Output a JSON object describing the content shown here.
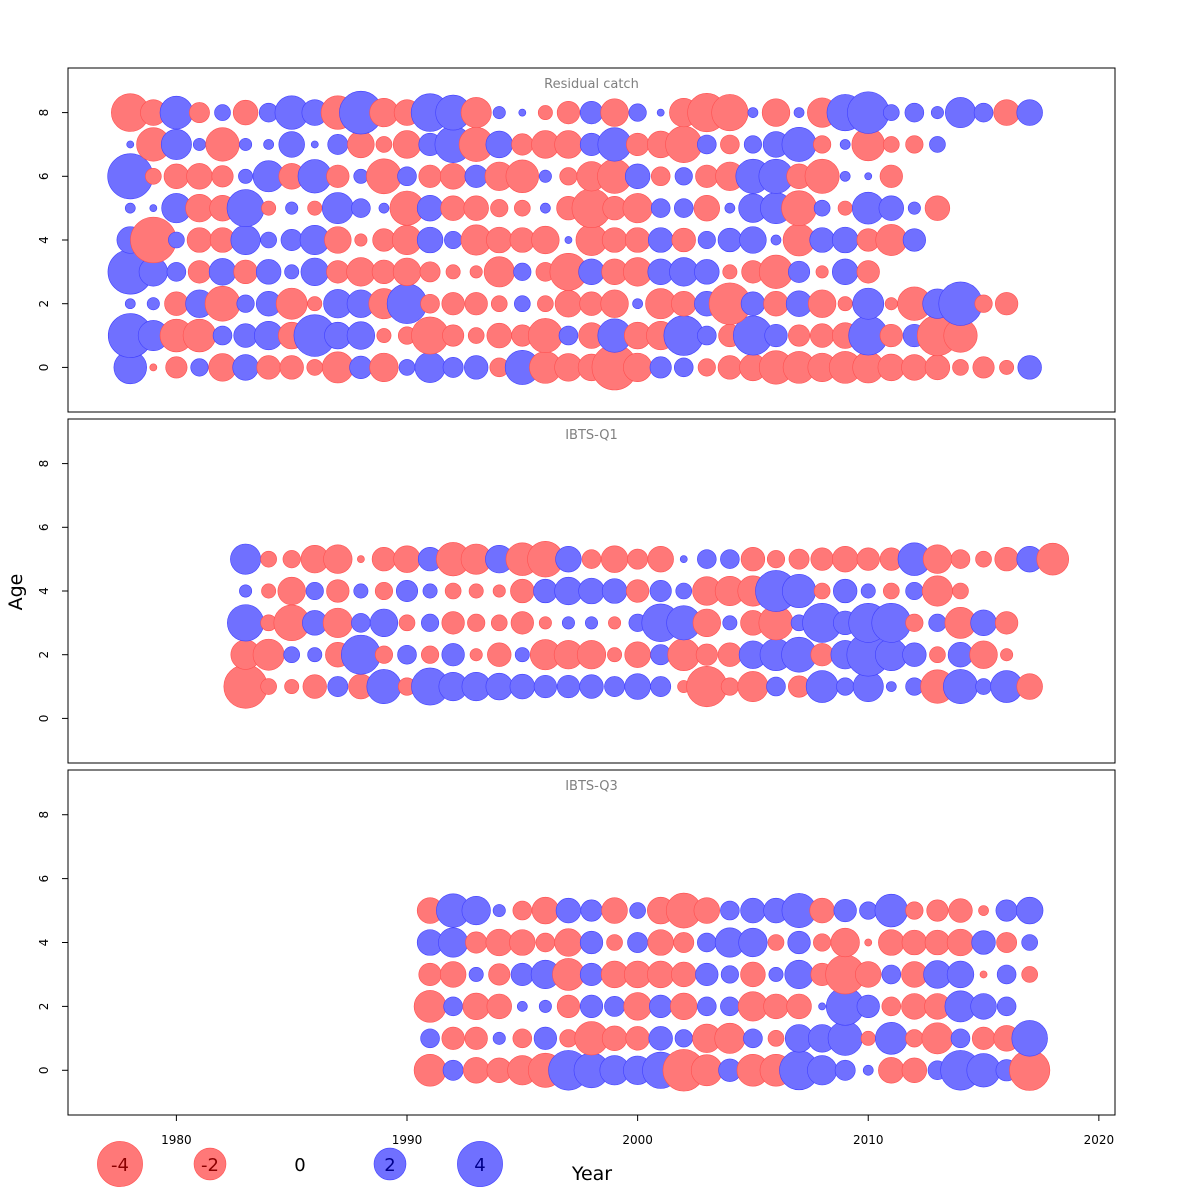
{
  "chart_data": {
    "type": "scatter",
    "subtype": "bubble-residuals",
    "xlabel": "Year",
    "ylabel": "Age",
    "xlim": [
      1975.3,
      2020.7
    ],
    "ylim": [
      -1.4,
      9.4
    ],
    "x_ticks": [
      "1980",
      "1990",
      "2000",
      "2010",
      "2020"
    ],
    "y_ticks": [
      "0",
      "2",
      "4",
      "6",
      "8"
    ],
    "colors": {
      "positive": "#7070ff",
      "negative": "#ff7878"
    },
    "panels": [
      {
        "title": "Residual catch",
        "years": [
          1978,
          2017
        ],
        "ages": [
          0,
          8
        ],
        "rows": {
          "0": [
            2.1,
            -0.1,
            -0.9,
            0.6,
            -1.5,
            1.3,
            -1.1,
            -1.1,
            -0.5,
            -1.9,
            1.0,
            -1.6,
            0.5,
            1.8,
            0.8,
            1.1,
            -0.7,
            2.3,
            -2.0,
            -1.5,
            -1.4,
            -4.0,
            -1.6,
            0.9,
            0.7,
            -0.6,
            -1.1,
            -1.4,
            -2.2,
            -2.0,
            -1.6,
            -2.0,
            -1.9,
            -1.4,
            -1.3,
            -1.2,
            -0.5,
            -0.9,
            -0.4,
            1.1
          ],
          "1": [
            3.8,
            1.8,
            -2.1,
            -2.1,
            0.7,
            1.1,
            1.6,
            -1.4,
            3.4,
            1.4,
            1.5,
            -0.4,
            -0.6,
            -2.7,
            -0.9,
            -0.5,
            -1.2,
            -0.9,
            -2.3,
            0.7,
            -1.3,
            2.2,
            -1.4,
            -1.6,
            3.1,
            0.7,
            -1.0,
            3.0,
            1.0,
            -0.9,
            -1.1,
            -1.3,
            3.0,
            -1.0,
            1.0,
            -3.2,
            -2.2
          ],
          "2": [
            0.2,
            0.3,
            -1.1,
            1.5,
            -2.4,
            0.6,
            1.2,
            -1.9,
            -0.4,
            1.6,
            1.5,
            -1.8,
            3.1,
            -0.7,
            -1.0,
            -1.0,
            -0.5,
            0.5,
            -0.5,
            -1.4,
            -1.1,
            -1.5,
            0.2,
            -1.8,
            -1.2,
            1.2,
            -3.4,
            1.1,
            -1.2,
            1.3,
            -1.5,
            -0.4,
            1.9,
            -0.3,
            -2.2,
            1.7,
            3.7,
            -0.6,
            -1.0
          ],
          "3": [
            3.9,
            1.6,
            0.7,
            -1.0,
            1.4,
            -1.1,
            1.2,
            0.4,
            1.5,
            -1.0,
            -1.6,
            -1.1,
            -1.5,
            -0.8,
            -0.4,
            -0.3,
            -1.8,
            0.6,
            -0.7,
            -2.7,
            1.3,
            -1.3,
            -1.6,
            1.3,
            1.6,
            1.2,
            -0.4,
            -1.0,
            -2.2,
            0.9,
            -0.3,
            1.3,
            -1.0
          ],
          "4": [
            1.4,
            -4.1,
            0.5,
            -1.2,
            -1.2,
            1.7,
            0.5,
            0.9,
            1.7,
            -1.4,
            -0.3,
            -1.0,
            -1.7,
            1.3,
            0.6,
            -1.8,
            -1.3,
            -1.2,
            -1.5,
            0.1,
            -1.9,
            -1.2,
            -1.2,
            1.2,
            -1.1,
            0.6,
            1.1,
            1.4,
            0.2,
            -2.0,
            1.2,
            1.3,
            -1.0,
            -1.9,
            1.0
          ],
          "5": [
            0.2,
            0.1,
            1.7,
            -1.5,
            -1.3,
            2.7,
            -0.4,
            0.3,
            -0.4,
            1.9,
            0.7,
            0.2,
            -2.3,
            1.3,
            -1.2,
            -1.2,
            -0.6,
            -0.5,
            0.2,
            -1.1,
            -3.0,
            -1.1,
            -1.7,
            0.7,
            0.7,
            -1.3,
            0.2,
            1.6,
            1.9,
            -2.4,
            0.5,
            -0.4,
            2.0,
            1.2,
            0.3,
            -1.2
          ],
          "6": [
            4.0,
            -0.5,
            -1.2,
            -1.3,
            -0.9,
            0.4,
            1.9,
            -1.3,
            2.2,
            -1.0,
            0.4,
            -2.4,
            0.7,
            -1.0,
            -1.3,
            1.0,
            -1.6,
            -2.1,
            0.3,
            -0.6,
            -1.7,
            -2.3,
            1.2,
            -0.7,
            0.6,
            -1.0,
            -1.6,
            2.3,
            2.3,
            -1.2,
            -2.3,
            0.2,
            0.1,
            -1.0
          ],
          "7": [
            0.1,
            -2.2,
            1.8,
            0.3,
            -2.2,
            0.3,
            0.2,
            1.3,
            0.1,
            0.8,
            -1.4,
            -0.5,
            -1.5,
            1.0,
            2.6,
            -2.3,
            1.4,
            -0.9,
            -1.5,
            -1.5,
            1.0,
            2.2,
            -1.0,
            -1.4,
            -2.6,
            0.7,
            -0.7,
            0.6,
            1.3,
            2.3,
            -0.6,
            0.2,
            -2.1,
            -0.5,
            -0.6,
            0.5
          ],
          "8": [
            -2.8,
            -1.3,
            2.1,
            -0.8,
            0.5,
            -1.2,
            0.7,
            2.2,
            1.3,
            -2.2,
            3.6,
            -1.6,
            -1.3,
            2.8,
            2.4,
            -1.8,
            0.3,
            0.1,
            -0.4,
            -1.0,
            1.0,
            -1.5,
            0.6,
            0.1,
            -1.6,
            -2.9,
            -2.6,
            0.2,
            -1.5,
            0.2,
            -1.7,
            2.6,
            3.4,
            0.5,
            0.7,
            0.3,
            1.8,
            0.7,
            -1.3,
            1.3
          ]
        }
      },
      {
        "title": "IBTS-Q1",
        "years": [
          1983,
          2018
        ],
        "ages": [
          1,
          5
        ],
        "rows": {
          "1": [
            -3.7,
            -0.5,
            -0.4,
            -1.1,
            0.8,
            -1.2,
            2.3,
            -0.6,
            2.7,
            1.6,
            1.6,
            1.4,
            1.2,
            1.0,
            1.0,
            1.1,
            0.8,
            1.3,
            0.8,
            -0.3,
            -3.2,
            -0.6,
            -1.8,
            0.7,
            -0.9,
            2.0,
            0.6,
            1.8,
            0.2,
            0.6,
            -2.2,
            2.3,
            0.5,
            2.0,
            -1.3
          ],
          "2": [
            -1.7,
            -1.9,
            0.5,
            0.4,
            -1.2,
            3.0,
            -0.6,
            0.7,
            -0.6,
            1.0,
            -0.3,
            -1.1,
            0.4,
            -1.8,
            -1.6,
            -1.6,
            -0.4,
            -1.3,
            0.8,
            -2.0,
            -0.9,
            -1.1,
            1.5,
            2.0,
            2.4,
            -1.0,
            1.6,
            3.6,
            2.0,
            1.1,
            -0.5,
            1.2,
            -1.5,
            -0.3
          ],
          "3": [
            2.6,
            -0.5,
            -2.5,
            1.2,
            -1.7,
            0.7,
            1.5,
            -0.5,
            0.6,
            -1.0,
            -0.6,
            -0.5,
            -1.0,
            -0.3,
            0.3,
            0.3,
            -0.3,
            0.6,
            2.8,
            2.3,
            -1.5,
            0.4,
            -1.2,
            -2.3,
            0.5,
            3.0,
            1.1,
            3.0,
            3.0,
            -0.6,
            0.6,
            -1.9,
            1.3,
            -1.0
          ],
          "4": [
            0.3,
            -0.4,
            -1.5,
            0.6,
            -1.0,
            0.4,
            -0.6,
            0.9,
            0.4,
            -0.5,
            -0.4,
            -0.3,
            -1.1,
            1.1,
            1.5,
            1.3,
            1.2,
            -1.0,
            0.9,
            0.5,
            -1.6,
            -1.7,
            -1.8,
            3.3,
            2.2,
            -0.5,
            1.1,
            0.4,
            -0.5,
            0.6,
            -1.8,
            -0.5
          ],
          "5": [
            1.8,
            -0.5,
            -0.6,
            -1.5,
            -1.6,
            -0.1,
            -1.1,
            -1.4,
            1.1,
            -2.2,
            -1.8,
            1.5,
            -2.1,
            -2.5,
            1.3,
            -0.7,
            -1.4,
            -0.8,
            -1.3,
            0.1,
            0.7,
            0.7,
            -1.1,
            -0.6,
            -0.8,
            -1.0,
            -1.3,
            -1.0,
            -1.0,
            2.1,
            -1.6,
            -0.7,
            -0.5,
            -1.1,
            1.3,
            -2.0
          ]
        }
      },
      {
        "title": "IBTS-Q3",
        "years": [
          1991,
          2017
        ],
        "ages": [
          0,
          5
        ],
        "rows": {
          "0": [
            -2.0,
            0.8,
            -1.3,
            -1.2,
            -1.7,
            -2.3,
            3.1,
            2.4,
            1.7,
            1.6,
            2.6,
            -3.4,
            -1.9,
            1.0,
            -2.0,
            -2.0,
            3.0,
            1.7,
            0.8,
            0.2,
            -1.3,
            -1.2,
            0.7,
            3.1,
            2.2,
            0.9,
            -3.2
          ],
          "1": [
            0.7,
            -1.0,
            -1.0,
            0.3,
            -0.7,
            1.0,
            -0.6,
            -2.2,
            -1.2,
            -1.1,
            1.1,
            0.6,
            -1.6,
            -1.8,
            0.7,
            -0.5,
            1.5,
            1.5,
            2.3,
            -0.4,
            2.0,
            -0.6,
            -1.9,
            0.7,
            -1.0,
            -1.3,
            2.5
          ],
          "2": [
            -2.0,
            0.7,
            -1.4,
            -1.2,
            0.2,
            0.3,
            -1.0,
            1.0,
            0.8,
            -1.5,
            1.0,
            -1.4,
            0.7,
            0.7,
            -1.7,
            -1.2,
            -1.2,
            0.1,
            2.8,
            1.0,
            -0.7,
            -1.3,
            -1.3,
            1.9,
            1.3,
            0.7
          ],
          "3": [
            -1.0,
            -1.3,
            0.4,
            -0.9,
            1.0,
            1.6,
            -2.0,
            1.0,
            -1.4,
            -1.4,
            -1.4,
            -1.2,
            1.0,
            0.6,
            -1.2,
            0.4,
            1.6,
            -1.0,
            -3.0,
            -1.3,
            0.7,
            -1.3,
            1.5,
            1.4,
            -0.1,
            0.7,
            -0.5
          ],
          "4": [
            1.3,
            1.7,
            -0.9,
            -1.4,
            -1.3,
            -0.7,
            -1.5,
            1.0,
            -0.5,
            0.8,
            -1.3,
            -0.8,
            0.7,
            1.7,
            1.6,
            -0.5,
            1.0,
            -0.6,
            -1.6,
            -0.1,
            -1.3,
            -1.2,
            -1.2,
            -1.4,
            1.1,
            -0.8,
            0.5
          ],
          "5": [
            -1.3,
            2.2,
            1.6,
            0.3,
            -0.7,
            -1.4,
            1.2,
            0.9,
            -1.3,
            0.5,
            -1.4,
            -2.4,
            -1.3,
            0.7,
            1.2,
            1.2,
            2.3,
            -1.2,
            1.0,
            0.6,
            2.1,
            -0.6,
            -0.9,
            -1.1,
            -0.2,
            0.9,
            1.4
          ]
        }
      }
    ],
    "legend": {
      "placement": "bottom-left",
      "labels": [
        "-4",
        "-2",
        "0",
        "2",
        "4"
      ],
      "values": [
        -4,
        -2,
        0,
        2,
        4
      ]
    }
  }
}
